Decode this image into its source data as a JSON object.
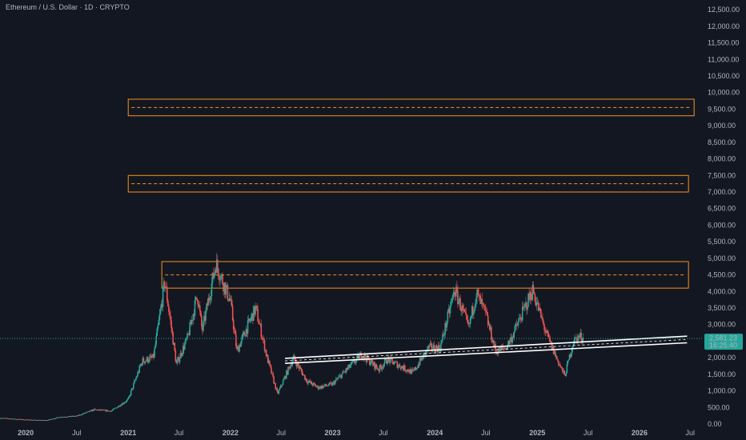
{
  "header": {
    "title": "Ethereum / U.S. Dollar · 1D · CRYPTO"
  },
  "price_badge": {
    "price": "2,581.23",
    "countdown": "16:25:40",
    "color": "#26a69a"
  },
  "colors": {
    "background": "#131722",
    "up": "#26a69a",
    "down": "#ef5350",
    "zone": "#f7931a",
    "channel": "#ffffff",
    "text": "#b2b5be"
  },
  "chart_data": {
    "type": "candlestick",
    "title": "Ethereum / U.S. Dollar · 1D · CRYPTO",
    "y_axis": {
      "position": "right",
      "range": [
        0,
        12600
      ],
      "ticks": [
        0,
        500,
        1000,
        1500,
        2000,
        2500,
        3000,
        3500,
        4000,
        4500,
        5000,
        5500,
        6000,
        6500,
        7000,
        7500,
        8000,
        8500,
        9000,
        9500,
        10000,
        10500,
        11000,
        11500,
        12000,
        12500
      ],
      "tick_labels": [
        "0.00",
        "500.00",
        "1,000.00",
        "1,500.00",
        "2,000.00",
        "2,500.00",
        "3,000.00",
        "3,500.00",
        "4,000.00",
        "4,500.00",
        "5,000.00",
        "5,500.00",
        "6,000.00",
        "6,500.00",
        "7,000.00",
        "7,500.00",
        "8,000.00",
        "8,500.00",
        "9,000.00",
        "9,500.00",
        "10,000.00",
        "10,500.00",
        "11,000.00",
        "11,500.00",
        "12,000.00",
        "12,500.00"
      ]
    },
    "x_axis": {
      "range": [
        "2019-10-01",
        "2026-08-15"
      ],
      "ticks": [
        {
          "date": "2020-01-01",
          "label": "2020",
          "year": true
        },
        {
          "date": "2020-07-01",
          "label": "Jul",
          "year": false
        },
        {
          "date": "2021-01-01",
          "label": "2021",
          "year": true
        },
        {
          "date": "2021-07-01",
          "label": "Jul",
          "year": false
        },
        {
          "date": "2022-01-01",
          "label": "2022",
          "year": true
        },
        {
          "date": "2022-07-01",
          "label": "Jul",
          "year": false
        },
        {
          "date": "2023-01-01",
          "label": "2023",
          "year": true
        },
        {
          "date": "2023-07-01",
          "label": "Jul",
          "year": false
        },
        {
          "date": "2024-01-01",
          "label": "2024",
          "year": true
        },
        {
          "date": "2024-07-01",
          "label": "Jul",
          "year": false
        },
        {
          "date": "2025-01-01",
          "label": "2025",
          "year": true
        },
        {
          "date": "2025-07-01",
          "label": "Jul",
          "year": false
        },
        {
          "date": "2026-01-01",
          "label": "2026",
          "year": true
        },
        {
          "date": "2026-07-01",
          "label": "Jul",
          "year": false
        }
      ]
    },
    "price_path": [
      [
        "2019-10-01",
        180
      ],
      [
        "2020-01-01",
        130
      ],
      [
        "2020-03-15",
        110
      ],
      [
        "2020-05-01",
        210
      ],
      [
        "2020-07-01",
        240
      ],
      [
        "2020-09-01",
        430
      ],
      [
        "2020-11-01",
        390
      ],
      [
        "2021-01-01",
        740
      ],
      [
        "2021-02-20",
        1900
      ],
      [
        "2021-04-01",
        2000
      ],
      [
        "2021-05-12",
        4300
      ],
      [
        "2021-06-22",
        1800
      ],
      [
        "2021-08-01",
        2600
      ],
      [
        "2021-09-05",
        3900
      ],
      [
        "2021-09-22",
        2800
      ],
      [
        "2021-11-10",
        4850
      ],
      [
        "2022-01-01",
        3700
      ],
      [
        "2022-01-24",
        2200
      ],
      [
        "2022-04-01",
        3500
      ],
      [
        "2022-05-12",
        2000
      ],
      [
        "2022-06-18",
        900
      ],
      [
        "2022-08-14",
        2000
      ],
      [
        "2022-10-01",
        1300
      ],
      [
        "2022-11-10",
        1100
      ],
      [
        "2022-12-31",
        1200
      ],
      [
        "2023-04-15",
        2100
      ],
      [
        "2023-06-15",
        1650
      ],
      [
        "2023-07-15",
        1950
      ],
      [
        "2023-10-15",
        1550
      ],
      [
        "2023-12-10",
        2300
      ],
      [
        "2024-01-20",
        2300
      ],
      [
        "2024-03-12",
        4050
      ],
      [
        "2024-05-01",
        2900
      ],
      [
        "2024-05-28",
        3950
      ],
      [
        "2024-07-01",
        3300
      ],
      [
        "2024-08-05",
        2200
      ],
      [
        "2024-09-10",
        2300
      ],
      [
        "2024-10-01",
        2600
      ],
      [
        "2024-12-16",
        4050
      ],
      [
        "2025-01-15",
        3200
      ],
      [
        "2025-02-03",
        2700
      ],
      [
        "2025-03-10",
        2000
      ],
      [
        "2025-04-09",
        1450
      ],
      [
        "2025-05-10",
        2500
      ],
      [
        "2025-06-01",
        2650
      ],
      [
        "2025-06-15",
        2581
      ]
    ],
    "zones": [
      {
        "from": "2021-01-01",
        "to": "2026-07-15",
        "low": 9300,
        "high": 9800,
        "mid": 9550
      },
      {
        "from": "2021-01-01",
        "to": "2026-06-25",
        "low": 7000,
        "high": 7500,
        "mid": 7250
      },
      {
        "from": "2021-05-01",
        "to": "2026-06-25",
        "low": 4100,
        "high": 4900,
        "mid": 4500
      }
    ],
    "channel": {
      "from": "2022-07-15",
      "to": "2026-06-20",
      "upper": [
        1980,
        2650
      ],
      "lower": [
        1830,
        2450
      ]
    },
    "last_price": 2581.23,
    "grid": false,
    "legend": "none"
  }
}
